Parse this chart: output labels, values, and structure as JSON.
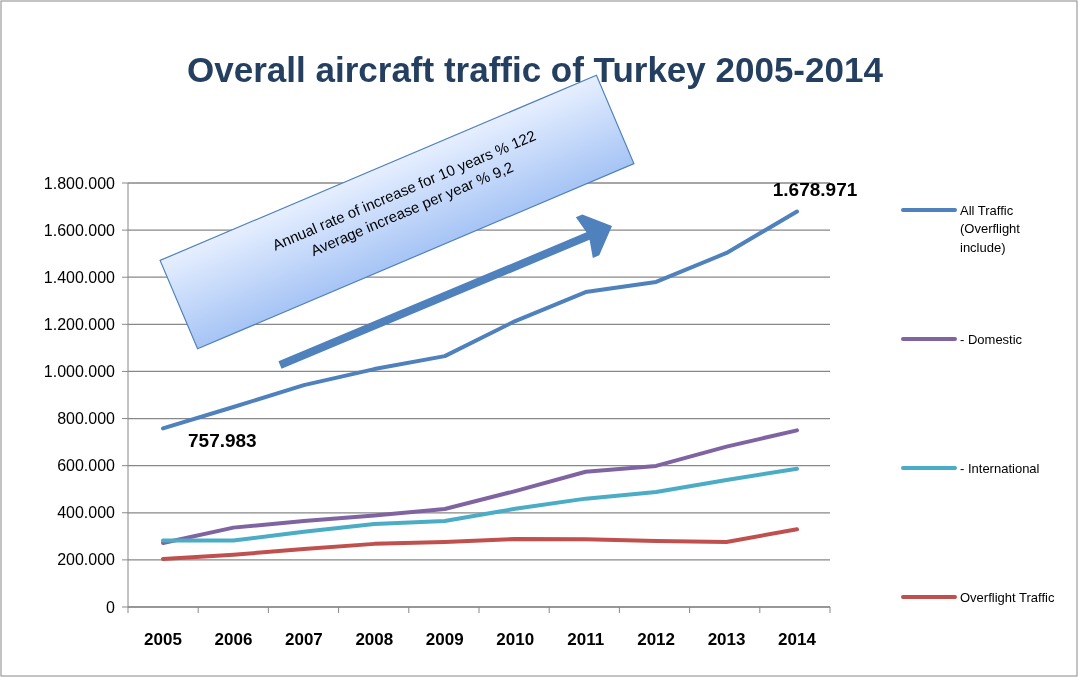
{
  "chart_data": {
    "type": "line",
    "title": "Overall aircraft traffic of Turkey 2005-2014",
    "categories": [
      "2005",
      "2006",
      "2007",
      "2008",
      "2009",
      "2010",
      "2011",
      "2012",
      "2013",
      "2014"
    ],
    "series": [
      {
        "name": "All Traffic (Overflight include)",
        "color": "#4f81bd",
        "values": [
          757983,
          849000,
          942000,
          1010000,
          1065000,
          1214000,
          1337000,
          1380000,
          1503000,
          1678971
        ],
        "value_labels": [
          "757.983",
          null,
          null,
          null,
          null,
          null,
          null,
          null,
          null,
          "1.678.971"
        ]
      },
      {
        "name": "- Domestic",
        "color": "#8064a2",
        "values": [
          272000,
          337000,
          365000,
          388000,
          416000,
          492000,
          574000,
          599000,
          681000,
          750000
        ]
      },
      {
        "name": "- International",
        "color": "#4bacc6",
        "values": [
          282000,
          282000,
          319000,
          352000,
          365000,
          417000,
          460000,
          488000,
          539000,
          587000
        ]
      },
      {
        "name": "Overflight Traffic",
        "color": "#c0504d",
        "values": [
          204000,
          222000,
          246000,
          268000,
          276000,
          289000,
          288000,
          280000,
          276000,
          330000
        ]
      }
    ],
    "ylim": [
      0,
      1800000
    ],
    "yticks": [
      0,
      {
        "value": 200000,
        "label": "200.000"
      },
      {
        "value": 400000,
        "label": "400.000"
      },
      {
        "value": 600000,
        "label": "600.000"
      },
      {
        "value": 800000,
        "label": "800.000"
      },
      {
        "value": 1000000,
        "label": "1.000.000"
      },
      {
        "value": 1200000,
        "label": "1.200.000"
      },
      {
        "value": 1400000,
        "label": "1.400.000"
      },
      {
        "value": 1600000,
        "label": "1.600.000"
      },
      {
        "value": 1800000,
        "label": "1.800.000"
      }
    ],
    "grid": "y",
    "legend": "right",
    "line_style": "solid",
    "annotations": [
      "Annual rate of increase for 10 years % 122",
      "Average increase per year % 9,2"
    ]
  }
}
